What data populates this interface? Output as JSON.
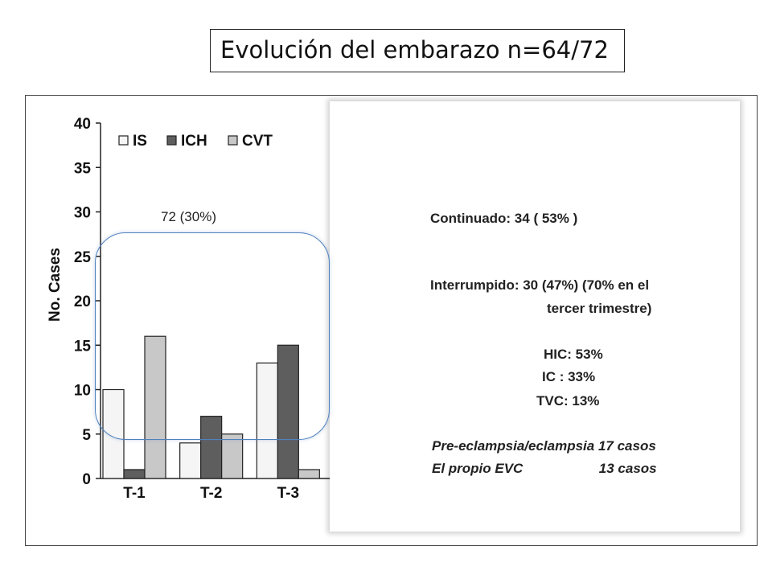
{
  "title": "Evolución del embarazo n=64/72",
  "callout_label": "72 (30%)",
  "panel": {
    "continuado": "Continuado: 34 ( 53% )",
    "interrumpido_1": "Interrumpido: 30 (47%) (70% en el",
    "interrumpido_2": "tercer trimestre)",
    "hic": "HIC: 53%",
    "ic": "IC   : 33%",
    "tvc": "TVC: 13%",
    "pre_eclampsia": "Pre-eclampsia/eclampsia  17 casos",
    "propio_evc": "El propio EVC                    13 casos"
  },
  "chart_data": {
    "type": "bar",
    "categories": [
      "T-1",
      "T-2",
      "T-3"
    ],
    "series": [
      {
        "name": "IS",
        "values": [
          10,
          4,
          13
        ],
        "color": "#f5f5f5"
      },
      {
        "name": "ICH",
        "values": [
          1,
          7,
          15
        ],
        "color": "#5e5e5e"
      },
      {
        "name": "CVT",
        "values": [
          16,
          5,
          1
        ],
        "color": "#c8c8c8"
      }
    ],
    "ylabel": "No. Cases",
    "ylim": [
      0,
      40
    ],
    "yticks": [
      0,
      5,
      10,
      15,
      20,
      25,
      30,
      35,
      40
    ],
    "legend_position": "top",
    "grid": false
  }
}
